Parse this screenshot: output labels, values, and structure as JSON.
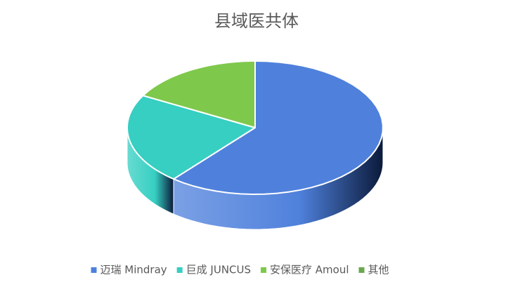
{
  "chart_data": {
    "type": "pie3d",
    "title": "县域医共体",
    "categories": [
      "迈瑞 Mindray",
      "巨成 JUNCUS",
      "安保医疗 Amoul",
      "其他"
    ],
    "values": [
      61,
      22,
      17,
      0
    ],
    "colors": [
      "#4f81dc",
      "#36cfc2",
      "#7ec84c",
      "#6aa84f"
    ],
    "legend": "bottom"
  }
}
